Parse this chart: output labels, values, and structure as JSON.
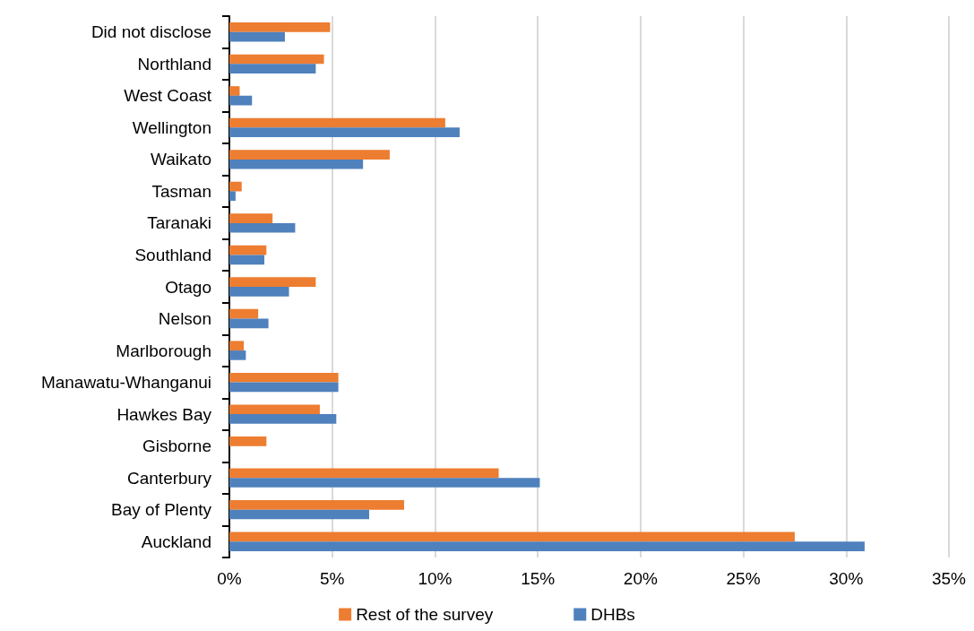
{
  "chart_data": {
    "type": "bar",
    "orientation": "horizontal",
    "categories": [
      "Did not disclose",
      "Northland",
      "West Coast",
      "Wellington",
      "Waikato",
      "Tasman",
      "Taranaki",
      "Southland",
      "Otago",
      "Nelson",
      "Marlborough",
      "Manawatu-Whanganui",
      "Hawkes Bay",
      "Gisborne",
      "Canterbury",
      "Bay of Plenty",
      "Auckland"
    ],
    "series": [
      {
        "name": "Rest of the survey",
        "color": "#ed7d31",
        "values": [
          4.9,
          4.6,
          0.5,
          10.5,
          7.8,
          0.6,
          2.1,
          1.8,
          4.2,
          1.4,
          0.7,
          5.3,
          4.4,
          1.8,
          13.1,
          8.5,
          27.5
        ]
      },
      {
        "name": "DHBs",
        "color": "#4f81bd",
        "values": [
          2.7,
          4.2,
          1.1,
          11.2,
          6.5,
          0.3,
          3.2,
          1.7,
          2.9,
          1.9,
          0.8,
          5.3,
          5.2,
          0,
          15.1,
          6.8,
          30.9
        ]
      }
    ],
    "xlim": [
      0,
      35
    ],
    "xticks": [
      {
        "value": 0,
        "label": "0%"
      },
      {
        "value": 5,
        "label": "5%"
      },
      {
        "value": 10,
        "label": "10%"
      },
      {
        "value": 15,
        "label": "15%"
      },
      {
        "value": 20,
        "label": "20%"
      },
      {
        "value": 25,
        "label": "25%"
      },
      {
        "value": 30,
        "label": "30%"
      },
      {
        "value": 35,
        "label": "35%"
      }
    ],
    "grid": "x",
    "legend": "bottom"
  }
}
